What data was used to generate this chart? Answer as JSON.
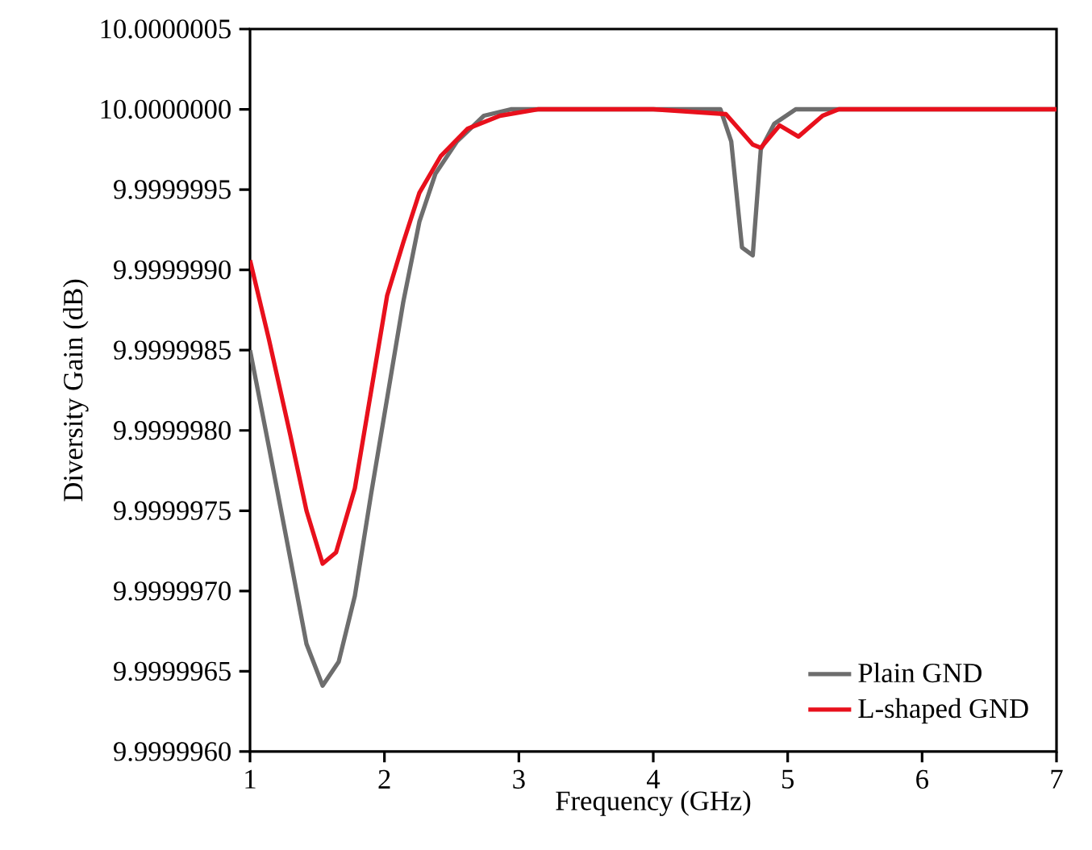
{
  "chart_data": {
    "type": "line",
    "xlabel": "Frequency (GHz)",
    "ylabel": "Diversity Gain (dB)",
    "xlim": [
      1,
      7
    ],
    "ylim": [
      9.999996,
      10.0000005
    ],
    "xticks": [
      1,
      2,
      3,
      4,
      5,
      6,
      7
    ],
    "yticks": [
      {
        "value": 9.999996,
        "label": "9.9999960"
      },
      9.9999965,
      {
        "value": 9.999997,
        "label": "9.9999970"
      },
      9.9999975,
      {
        "value": 9.999998,
        "label": "9.9999980"
      },
      9.9999985,
      {
        "value": 9.999999,
        "label": "9.9999990"
      },
      9.9999995,
      {
        "value": 10,
        "label": "10.0000000"
      },
      10.0000005
    ],
    "legend": "bottom right",
    "series": [
      {
        "name": "Plain GND",
        "color": "#6d6d6d",
        "x": [
          1.0,
          1.14,
          1.3,
          1.42,
          1.54,
          1.66,
          1.78,
          1.9,
          2.02,
          2.14,
          2.26,
          2.38,
          2.54,
          2.74,
          2.94,
          3.5,
          4.0,
          4.5,
          4.58,
          4.66,
          4.74,
          4.8,
          4.9,
          5.06,
          6.0,
          7.0
        ],
        "values": [
          9.9999985,
          9.9999979,
          9.9999972,
          9.99999667,
          9.99999641,
          9.99999656,
          9.99999697,
          9.9999976,
          9.9999982,
          9.9999988,
          9.9999993,
          9.9999996,
          9.9999998,
          9.99999996,
          10.0,
          null,
          null,
          10.0,
          9.9999998,
          9.99999914,
          9.99999909,
          9.99999975,
          9.99999991,
          10.0,
          null,
          10.0
        ]
      },
      {
        "name": "L-shaped GND",
        "color": "#e8101c",
        "x": [
          1.0,
          1.14,
          1.3,
          1.42,
          1.54,
          1.64,
          1.78,
          1.9,
          2.02,
          2.14,
          2.26,
          2.42,
          2.62,
          2.86,
          3.14,
          3.5,
          4.0,
          4.54,
          4.74,
          4.8,
          4.94,
          5.08,
          5.26,
          5.38,
          6.0,
          7.0
        ],
        "values": [
          9.99999906,
          9.99999857,
          9.99999797,
          9.9999975,
          9.99999717,
          9.99999724,
          9.99999764,
          9.99999824,
          9.99999884,
          9.99999917,
          9.99999948,
          9.99999971,
          9.99999988,
          9.99999996,
          10.0,
          10.0,
          10.0,
          9.99999997,
          9.99999978,
          9.99999976,
          9.9999999,
          9.99999983,
          9.99999996,
          10.0,
          10.0,
          10.0
        ]
      }
    ]
  }
}
